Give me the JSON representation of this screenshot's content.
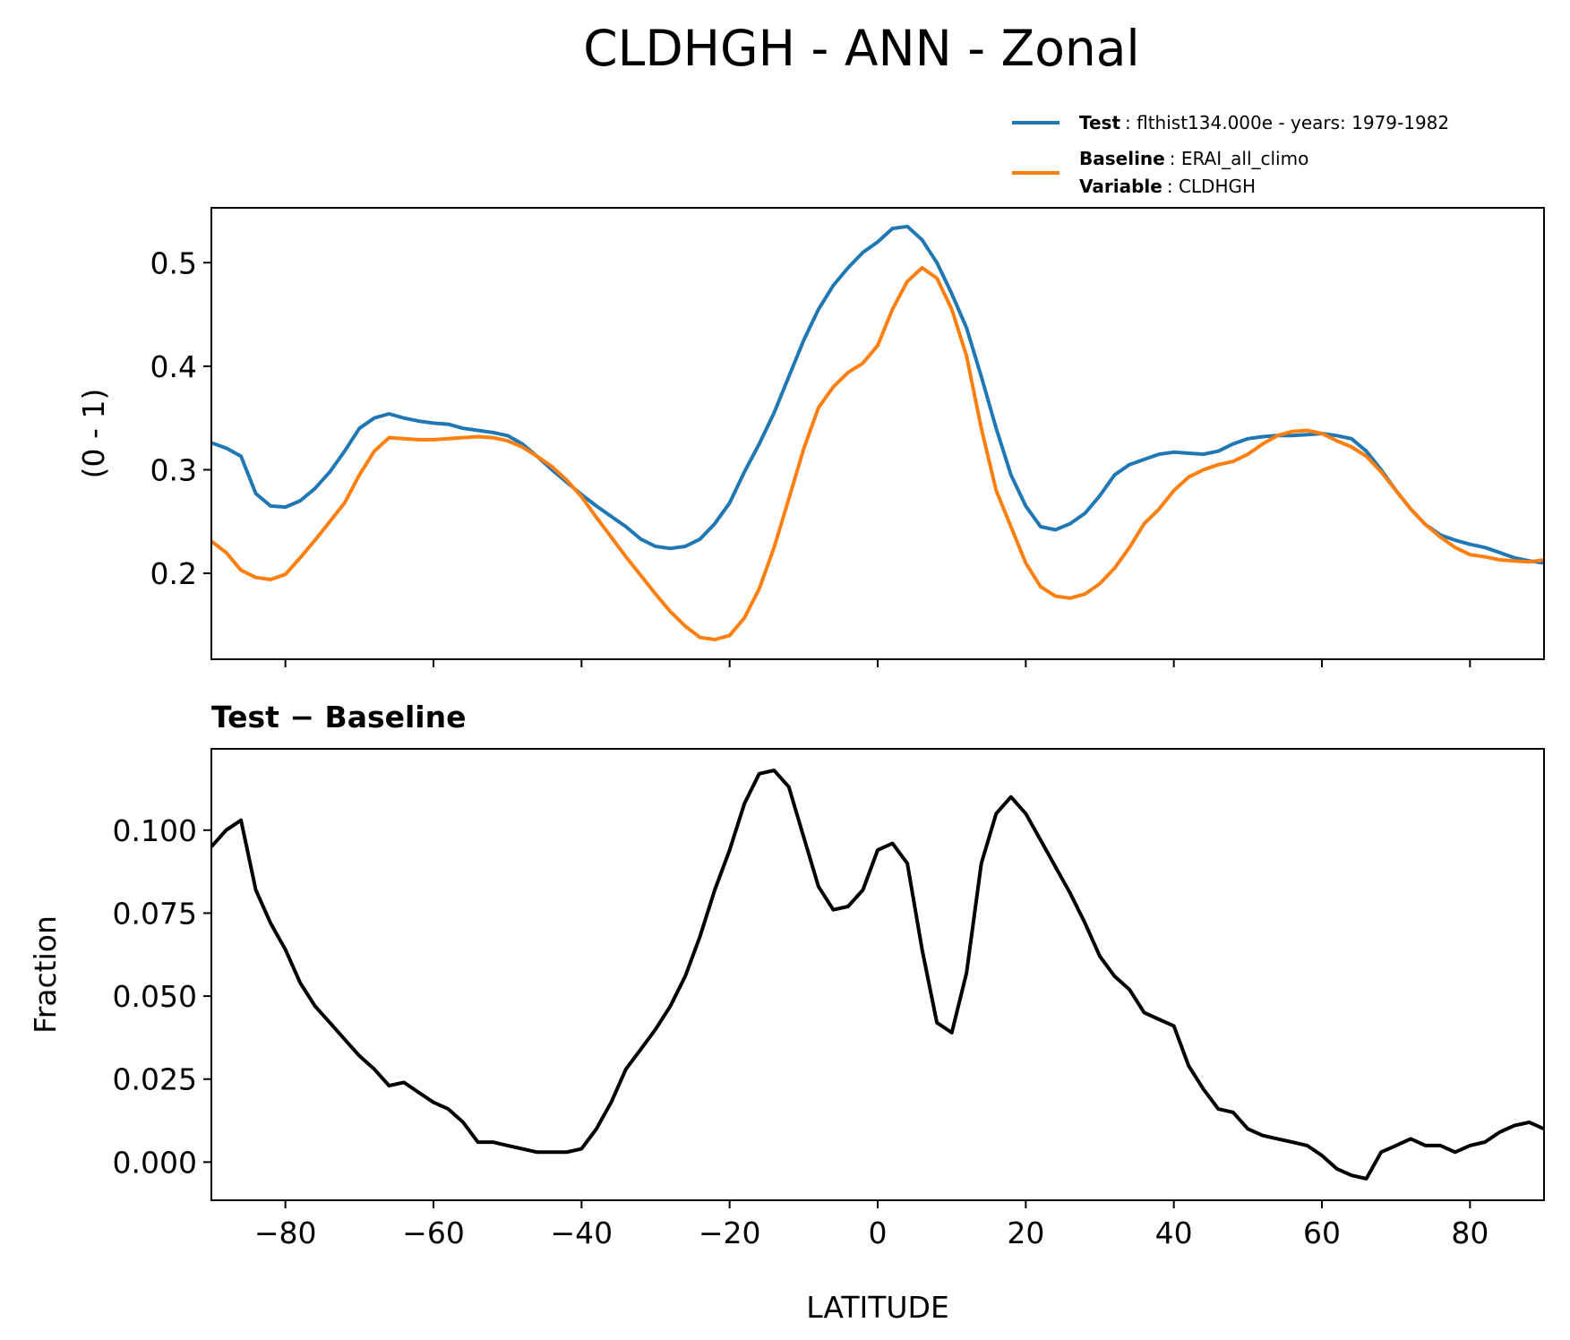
{
  "figure": {
    "title": "CLDHGH - ANN - Zonal"
  },
  "legend": {
    "test_key": "Test",
    "test_value": ": flthist134.000e - years: 1979-1982",
    "baseline_key": "Baseline",
    "baseline_value": ": ERAI_all_climo",
    "variable_key": "Variable",
    "variable_value": ": CLDHGH"
  },
  "colors": {
    "test": "#1f77b4",
    "baseline": "#ff7f0e",
    "diff": "#000000"
  },
  "chart_data": [
    {
      "type": "line",
      "title": "",
      "xlabel": "",
      "ylabel": "(0 - 1)",
      "xlim": [
        -90,
        90
      ],
      "ylim": [
        0.117,
        0.553
      ],
      "yticks": [
        0.2,
        0.3,
        0.4,
        0.5
      ],
      "yticklabels": [
        "0.2",
        "0.3",
        "0.4",
        "0.5"
      ],
      "xticks": [
        -80,
        -60,
        -40,
        -20,
        0,
        20,
        40,
        60,
        80
      ],
      "show_xticklabels": false,
      "legend_position": "above top-right",
      "series": [
        {
          "name": "Test",
          "color": "#1f77b4",
          "x": [
            -90,
            -88,
            -86,
            -84,
            -82,
            -80,
            -78,
            -76,
            -74,
            -72,
            -70,
            -68,
            -66,
            -64,
            -62,
            -60,
            -58,
            -56,
            -54,
            -52,
            -50,
            -48,
            -46,
            -44,
            -42,
            -40,
            -38,
            -36,
            -34,
            -32,
            -30,
            -28,
            -26,
            -24,
            -22,
            -20,
            -18,
            -16,
            -14,
            -12,
            -10,
            -8,
            -6,
            -4,
            -2,
            0,
            2,
            4,
            6,
            8,
            10,
            12,
            14,
            16,
            18,
            20,
            22,
            24,
            26,
            28,
            30,
            32,
            34,
            36,
            38,
            40,
            42,
            44,
            46,
            48,
            50,
            52,
            54,
            56,
            58,
            60,
            62,
            64,
            66,
            68,
            70,
            72,
            74,
            76,
            78,
            80,
            82,
            84,
            86,
            88,
            90
          ],
          "values": [
            0.326,
            0.321,
            0.313,
            0.277,
            0.265,
            0.264,
            0.27,
            0.282,
            0.298,
            0.318,
            0.34,
            0.35,
            0.354,
            0.35,
            0.347,
            0.345,
            0.344,
            0.34,
            0.338,
            0.336,
            0.333,
            0.325,
            0.313,
            0.3,
            0.288,
            0.276,
            0.265,
            0.255,
            0.245,
            0.233,
            0.226,
            0.224,
            0.226,
            0.233,
            0.248,
            0.268,
            0.298,
            0.325,
            0.355,
            0.39,
            0.425,
            0.455,
            0.478,
            0.495,
            0.51,
            0.52,
            0.533,
            0.535,
            0.522,
            0.5,
            0.47,
            0.437,
            0.39,
            0.34,
            0.295,
            0.265,
            0.245,
            0.242,
            0.248,
            0.258,
            0.275,
            0.295,
            0.305,
            0.31,
            0.315,
            0.317,
            0.316,
            0.315,
            0.318,
            0.325,
            0.33,
            0.332,
            0.333,
            0.333,
            0.334,
            0.335,
            0.333,
            0.33,
            0.318,
            0.3,
            0.28,
            0.262,
            0.247,
            0.237,
            0.232,
            0.228,
            0.225,
            0.22,
            0.215,
            0.212,
            0.21
          ]
        },
        {
          "name": "Baseline",
          "color": "#ff7f0e",
          "x": [
            -90,
            -88,
            -86,
            -84,
            -82,
            -80,
            -78,
            -76,
            -74,
            -72,
            -70,
            -68,
            -66,
            -64,
            -62,
            -60,
            -58,
            -56,
            -54,
            -52,
            -50,
            -48,
            -46,
            -44,
            -42,
            -40,
            -38,
            -36,
            -34,
            -32,
            -30,
            -28,
            -26,
            -24,
            -22,
            -20,
            -18,
            -16,
            -14,
            -12,
            -10,
            -8,
            -6,
            -4,
            -2,
            0,
            2,
            4,
            6,
            8,
            10,
            12,
            14,
            16,
            18,
            20,
            22,
            24,
            26,
            28,
            30,
            32,
            34,
            36,
            38,
            40,
            42,
            44,
            46,
            48,
            50,
            52,
            54,
            56,
            58,
            60,
            62,
            64,
            66,
            68,
            70,
            72,
            74,
            76,
            78,
            80,
            82,
            84,
            86,
            88,
            90
          ],
          "values": [
            0.231,
            0.22,
            0.203,
            0.196,
            0.194,
            0.199,
            0.215,
            0.232,
            0.25,
            0.268,
            0.295,
            0.318,
            0.331,
            0.33,
            0.329,
            0.329,
            0.33,
            0.331,
            0.332,
            0.331,
            0.328,
            0.322,
            0.313,
            0.303,
            0.29,
            0.274,
            0.254,
            0.235,
            0.216,
            0.198,
            0.18,
            0.163,
            0.149,
            0.138,
            0.136,
            0.14,
            0.157,
            0.185,
            0.225,
            0.272,
            0.32,
            0.36,
            0.38,
            0.394,
            0.403,
            0.42,
            0.455,
            0.482,
            0.495,
            0.485,
            0.455,
            0.41,
            0.34,
            0.28,
            0.245,
            0.21,
            0.187,
            0.178,
            0.176,
            0.18,
            0.19,
            0.205,
            0.225,
            0.248,
            0.262,
            0.28,
            0.293,
            0.3,
            0.305,
            0.308,
            0.315,
            0.325,
            0.333,
            0.337,
            0.338,
            0.335,
            0.328,
            0.322,
            0.313,
            0.298,
            0.28,
            0.262,
            0.247,
            0.235,
            0.225,
            0.218,
            0.216,
            0.213,
            0.212,
            0.211,
            0.213
          ]
        }
      ]
    },
    {
      "type": "line",
      "title": "Test − Baseline",
      "xlabel": "LATITUDE",
      "ylabel": "Fraction",
      "xlim": [
        -90,
        90
      ],
      "ylim": [
        -0.0115,
        0.1245
      ],
      "yticks": [
        0.0,
        0.025,
        0.05,
        0.075,
        0.1
      ],
      "yticklabels": [
        "0.000",
        "0.025",
        "0.050",
        "0.075",
        "0.100"
      ],
      "xticks": [
        -80,
        -60,
        -40,
        -20,
        0,
        20,
        40,
        60,
        80
      ],
      "xticklabels": [
        "−80",
        "−60",
        "−40",
        "−20",
        "0",
        "20",
        "40",
        "60",
        "80"
      ],
      "series": [
        {
          "color": "#000000",
          "x": [
            -90,
            -88,
            -86,
            -84,
            -82,
            -80,
            -78,
            -76,
            -74,
            -72,
            -70,
            -68,
            -66,
            -64,
            -62,
            -60,
            -58,
            -56,
            -54,
            -52,
            -50,
            -48,
            -46,
            -44,
            -42,
            -40,
            -38,
            -36,
            -34,
            -32,
            -30,
            -28,
            -26,
            -24,
            -22,
            -20,
            -18,
            -16,
            -14,
            -12,
            -10,
            -8,
            -6,
            -4,
            -2,
            0,
            2,
            4,
            6,
            8,
            10,
            12,
            14,
            16,
            18,
            20,
            22,
            24,
            26,
            28,
            30,
            32,
            34,
            36,
            38,
            40,
            42,
            44,
            46,
            48,
            50,
            52,
            54,
            56,
            58,
            60,
            62,
            64,
            66,
            68,
            70,
            72,
            74,
            76,
            78,
            80,
            82,
            84,
            86,
            88,
            90
          ],
          "values": [
            0.095,
            0.1,
            0.103,
            0.082,
            0.072,
            0.064,
            0.054,
            0.047,
            0.042,
            0.037,
            0.032,
            0.028,
            0.023,
            0.024,
            0.021,
            0.018,
            0.016,
            0.012,
            0.006,
            0.006,
            0.005,
            0.004,
            0.003,
            0.003,
            0.003,
            0.004,
            0.01,
            0.018,
            0.028,
            0.034,
            0.04,
            0.047,
            0.056,
            0.068,
            0.082,
            0.094,
            0.108,
            0.117,
            0.118,
            0.113,
            0.098,
            0.083,
            0.076,
            0.077,
            0.082,
            0.094,
            0.096,
            0.09,
            0.064,
            0.042,
            0.039,
            0.057,
            0.09,
            0.105,
            0.11,
            0.105,
            0.097,
            0.089,
            0.081,
            0.072,
            0.062,
            0.056,
            0.052,
            0.045,
            0.043,
            0.041,
            0.029,
            0.022,
            0.016,
            0.015,
            0.01,
            0.008,
            0.007,
            0.006,
            0.005,
            0.002,
            -0.002,
            -0.004,
            -0.005,
            0.003,
            0.005,
            0.007,
            0.005,
            0.005,
            0.003,
            0.005,
            0.006,
            0.009,
            0.011,
            0.012,
            0.01
          ]
        }
      ]
    }
  ]
}
